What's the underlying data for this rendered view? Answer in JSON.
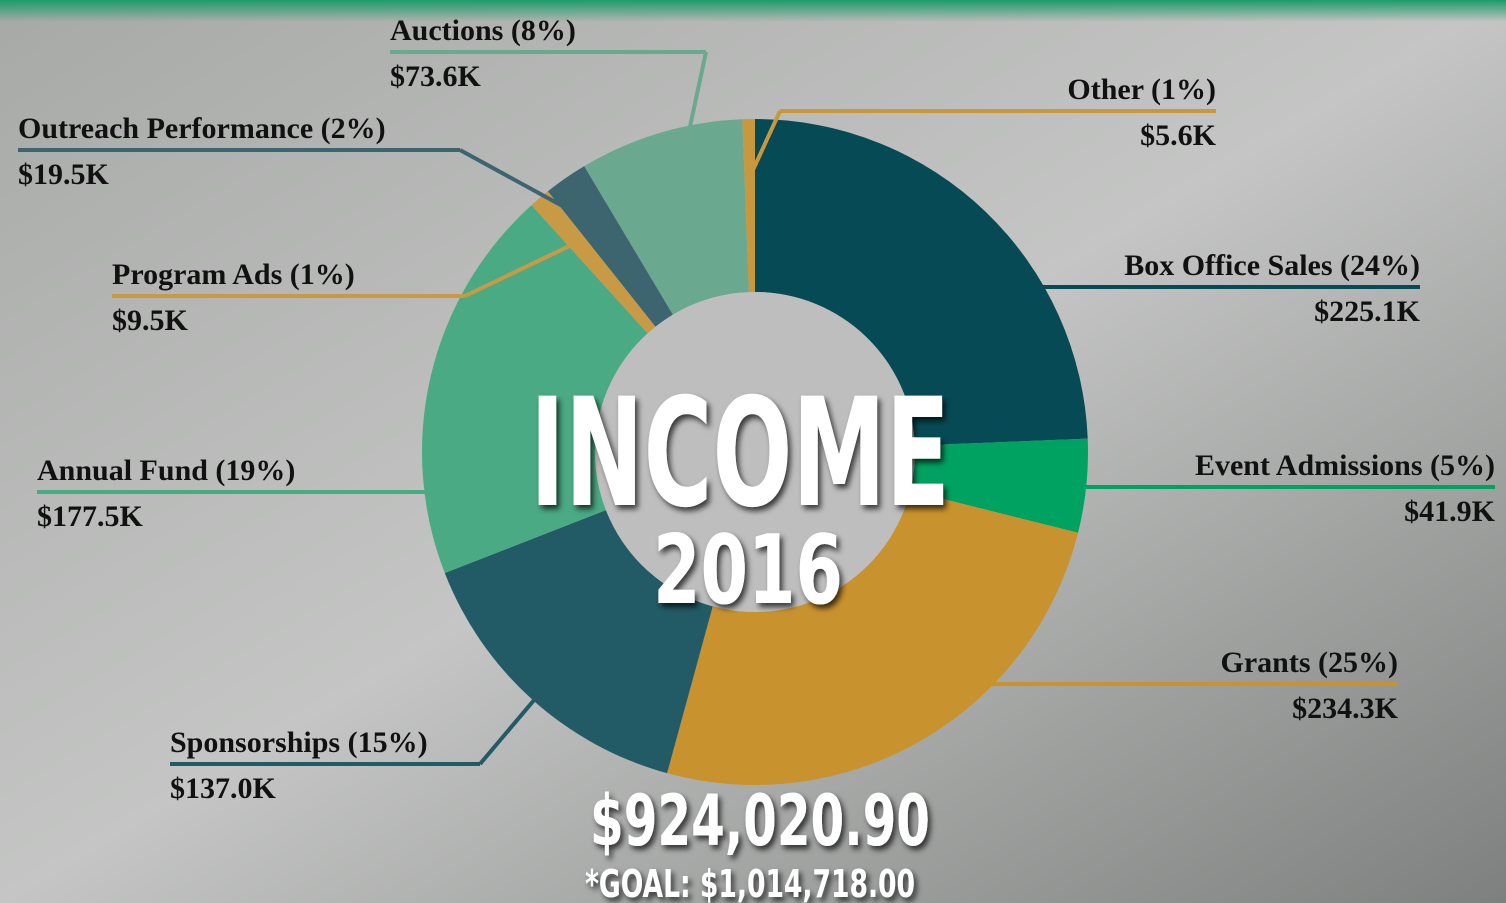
{
  "chart_data": {
    "type": "pie",
    "donut": true,
    "title": "INCOME",
    "subtitle": "2016",
    "total_label": "$924,020.90",
    "goal_label": "*GOAL: $1,014,718.00",
    "categories": [
      "Box Office Sales (24%)",
      "Event Admissions (5%)",
      "Grants (25%)",
      "Sponsorships (15%)",
      "Annual Fund (19%)",
      "Program Ads (1%)",
      "Outreach Performance (2%)",
      "Auctions (8%)",
      "Other (1%)"
    ],
    "values": [
      225100,
      41900,
      234300,
      137000,
      177500,
      9500,
      19500,
      73600,
      5600
    ],
    "value_labels": [
      "$225.1K",
      "$41.9K",
      "$234.3K",
      "$137.0K",
      "$177.5K",
      "$9.5K",
      "$19.5K",
      "$73.6K",
      "$5.6K"
    ],
    "colors": [
      "#064a55",
      "#00a262",
      "#c8922e",
      "#225a66",
      "#4aaa84",
      "#c89a45",
      "#3d6570",
      "#6aa890",
      "#c8983e"
    ]
  }
}
